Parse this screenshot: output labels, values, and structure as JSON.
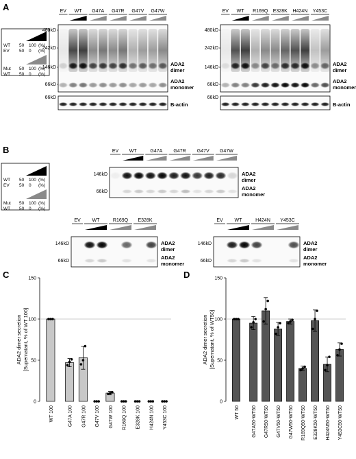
{
  "panels": {
    "A": "A",
    "B": "B",
    "C": "C",
    "D": "D"
  },
  "legend": {
    "wt_label": "WT",
    "ev_label": "EV",
    "mut_label": "Mut",
    "top_wt": [
      "50",
      "100",
      "(%)"
    ],
    "top_ev": [
      "50",
      "0",
      "(%)"
    ],
    "bot_mut": [
      "50",
      "100",
      "(%)"
    ],
    "bot_wt": [
      "50",
      "0",
      "(%)"
    ]
  },
  "blot_a_left": {
    "lanes": [
      "EV",
      "WT",
      "G47A",
      "G47R",
      "G47V",
      "G47W"
    ],
    "markers": [
      "480kD",
      "242kD",
      "146kD",
      "66kD"
    ],
    "actin_marker": "66kD"
  },
  "blot_a_right": {
    "lanes": [
      "EV",
      "WT",
      "R169Q",
      "E328K",
      "H424N",
      "Y453C"
    ],
    "markers": [
      "480kD",
      "242kD",
      "146kD",
      "66kD"
    ],
    "actin_marker": "66kD"
  },
  "blot_labels": {
    "dimer": [
      "ADA2",
      "dimer"
    ],
    "monomer": [
      "ADA2",
      "monomer"
    ],
    "actin": "B-actin"
  },
  "blot_b_top": {
    "lanes": [
      "EV",
      "WT",
      "G47A",
      "G47R",
      "G47V",
      "G47W"
    ],
    "markers": [
      "146kD",
      "66kD"
    ]
  },
  "blot_b_left": {
    "lanes": [
      "EV",
      "WT",
      "R169Q",
      "E328K"
    ],
    "markers": [
      "146kD",
      "66kD"
    ]
  },
  "blot_b_right": {
    "lanes": [
      "EV",
      "WT",
      "H424N",
      "Y453C"
    ],
    "markers": [
      "146kD",
      "66kD"
    ]
  },
  "chart_data": [
    {
      "type": "bar",
      "ylabel": [
        "ADA2 dimer secretion",
        "[Supernatant, % of WT 100]"
      ],
      "ylim": [
        0,
        150
      ],
      "yticks": [
        0,
        50,
        100,
        150
      ],
      "reference_line": 100,
      "categories": [
        "WT 100",
        "G47A 100",
        "G47R 100",
        "G47V 100",
        "G47W 100",
        "R169Q 100",
        "E328K 100",
        "H424N 100",
        "Y453C 100"
      ],
      "values": [
        100,
        47,
        53,
        0,
        10,
        0,
        0,
        0,
        0
      ],
      "errors": [
        0,
        5,
        14,
        0,
        2,
        0,
        0,
        0,
        0
      ],
      "points": [
        [
          100,
          100,
          100
        ],
        [
          44,
          48,
          51
        ],
        [
          45,
          50,
          67
        ],
        [
          0,
          0,
          0
        ],
        [
          9,
          10,
          11
        ],
        [
          0,
          0,
          0
        ],
        [
          0,
          0,
          0
        ],
        [
          0,
          0,
          0
        ],
        [
          0,
          0,
          0
        ]
      ],
      "bar_color": "#c8c8c8"
    },
    {
      "type": "bar",
      "ylabel": [
        "ADA2 dimer secretion",
        "[Supernatant, % of WT50]"
      ],
      "ylim": [
        0,
        150
      ],
      "yticks": [
        0,
        50,
        100,
        150
      ],
      "reference_line": 100,
      "categories": [
        "WT 50",
        "G47A50-WT50",
        "G47R50-WT50",
        "G47V50-WT50",
        "G47W50-WT50",
        "R169Q50-WT50",
        "E328K50-WT50",
        "H424N50-WT50",
        "Y453C50-WT50"
      ],
      "values": [
        100,
        95,
        110,
        88,
        97,
        40,
        98,
        45,
        63
      ],
      "errors": [
        0,
        8,
        16,
        8,
        3,
        3,
        13,
        9,
        8
      ],
      "points": [
        [
          100,
          100,
          100
        ],
        [
          90,
          96,
          100
        ],
        [
          97,
          112,
          122
        ],
        [
          82,
          90,
          95
        ],
        [
          95,
          97,
          99
        ],
        [
          38,
          40,
          42
        ],
        [
          88,
          100,
          110
        ],
        [
          38,
          44,
          54
        ],
        [
          56,
          63,
          70
        ]
      ],
      "bar_color": "#555555"
    }
  ]
}
